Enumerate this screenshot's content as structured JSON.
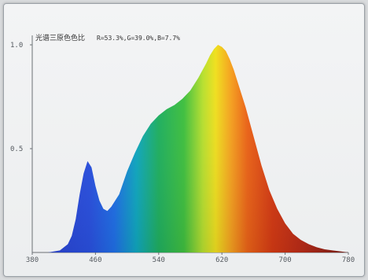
{
  "chart_data": {
    "type": "area",
    "title": "光谱三原色色比",
    "annotation": "R=53.3%,G=39.0%,B=7.7%",
    "xlabel": "",
    "ylabel": "",
    "xlim": [
      380,
      780
    ],
    "ylim": [
      0,
      1.0
    ],
    "x_ticks": [
      "380",
      "460",
      "540",
      "620",
      "700",
      "780"
    ],
    "y_ticks": [
      "0.5",
      "1.0"
    ],
    "grid": false,
    "fill": "spectral gradient",
    "x": [
      380,
      400,
      415,
      425,
      430,
      435,
      440,
      445,
      450,
      455,
      460,
      465,
      470,
      475,
      480,
      490,
      500,
      510,
      520,
      530,
      540,
      550,
      560,
      570,
      580,
      590,
      600,
      605,
      610,
      615,
      620,
      625,
      630,
      635,
      640,
      650,
      660,
      670,
      680,
      690,
      700,
      710,
      720,
      730,
      740,
      750,
      760,
      770,
      780
    ],
    "y": [
      0,
      0,
      0.01,
      0.04,
      0.08,
      0.16,
      0.28,
      0.38,
      0.44,
      0.41,
      0.32,
      0.25,
      0.21,
      0.2,
      0.22,
      0.28,
      0.39,
      0.48,
      0.56,
      0.62,
      0.66,
      0.69,
      0.71,
      0.74,
      0.78,
      0.84,
      0.91,
      0.95,
      0.98,
      1.0,
      0.99,
      0.97,
      0.93,
      0.88,
      0.82,
      0.7,
      0.56,
      0.42,
      0.3,
      0.21,
      0.14,
      0.09,
      0.06,
      0.04,
      0.025,
      0.015,
      0.01,
      0.005,
      0
    ]
  },
  "colors": {
    "axis": "#6b7075",
    "text": "#333333"
  }
}
